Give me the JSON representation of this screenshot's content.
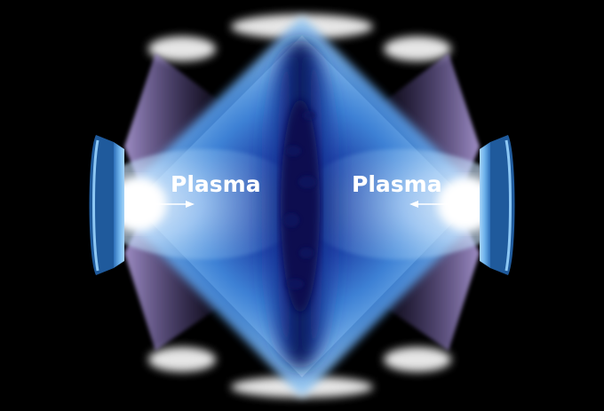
{
  "labels": {
    "left_plasma": "Plasma",
    "right_plasma": "Plasma"
  },
  "colors": {
    "background": "#000000",
    "core_blue": "#2e5fc8",
    "shock_center": "#0a1a5a",
    "halo_white": "#ffffff",
    "cone_violet": "#9a80d0",
    "target_blue": "#4a8fd0"
  },
  "icons": {
    "left_arrow": "arrow-right-icon",
    "right_arrow": "arrow-left-icon"
  }
}
